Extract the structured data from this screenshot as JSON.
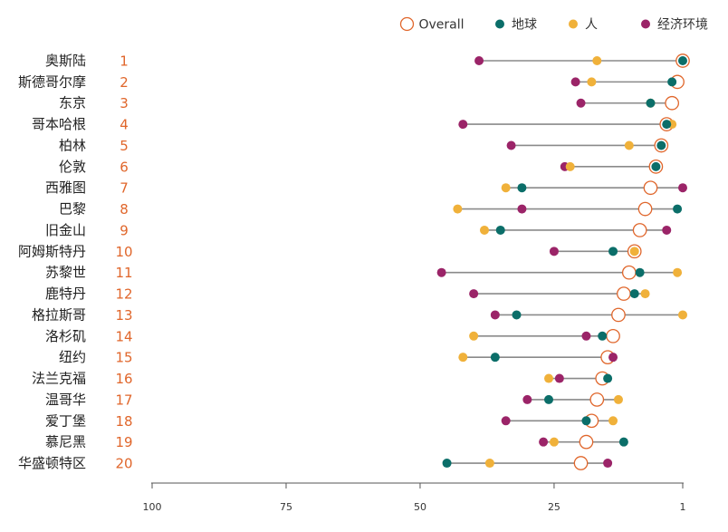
{
  "chart_data": {
    "type": "scatter",
    "categories": [
      "奥斯陆",
      "斯德哥尔摩",
      "东京",
      "哥本哈根",
      "柏林",
      "伦敦",
      "西雅图",
      "巴黎",
      "旧金山",
      "阿姆斯特丹",
      "苏黎世",
      "鹿特丹",
      "格拉斯哥",
      "洛杉矶",
      "纽约",
      "法兰克福",
      "温哥华",
      "爱丁堡",
      "慕尼黑",
      "华盛顿特区"
    ],
    "ranks": [
      1,
      2,
      3,
      4,
      5,
      6,
      7,
      8,
      9,
      10,
      11,
      12,
      13,
      14,
      15,
      16,
      17,
      18,
      19,
      20
    ],
    "series": [
      {
        "name": "Overall",
        "color": "#E0662B",
        "values": [
          1,
          2,
          3,
          4,
          5,
          6,
          7,
          8,
          9,
          10,
          11,
          12,
          13,
          14,
          15,
          16,
          17,
          18,
          19,
          20
        ]
      },
      {
        "name": "地球",
        "color": "#0B6E69",
        "values": [
          1,
          3,
          7,
          4,
          5,
          6,
          31,
          2,
          35,
          14,
          9,
          10,
          32,
          16,
          36,
          15,
          26,
          19,
          12,
          45
        ]
      },
      {
        "name": "人",
        "color": "#F0B13A",
        "values": [
          17,
          18,
          7,
          3,
          11,
          22,
          34,
          43,
          38,
          10,
          2,
          8,
          1,
          40,
          42,
          26,
          13,
          14,
          25,
          37
        ]
      },
      {
        "name": "经济环境",
        "color": "#9B2468",
        "values": [
          39,
          21,
          20,
          42,
          33,
          23,
          1,
          31,
          4,
          25,
          46,
          40,
          36,
          19,
          14,
          24,
          30,
          34,
          27,
          15
        ]
      }
    ],
    "xticks": [
      100,
      75,
      50,
      25,
      1
    ],
    "xlim": [
      100,
      1
    ],
    "grid": false,
    "legend_position": "top-right",
    "connector_color": "#8A8A8A",
    "rank_label_color": "#E0662B",
    "axis_color": "#555555"
  }
}
